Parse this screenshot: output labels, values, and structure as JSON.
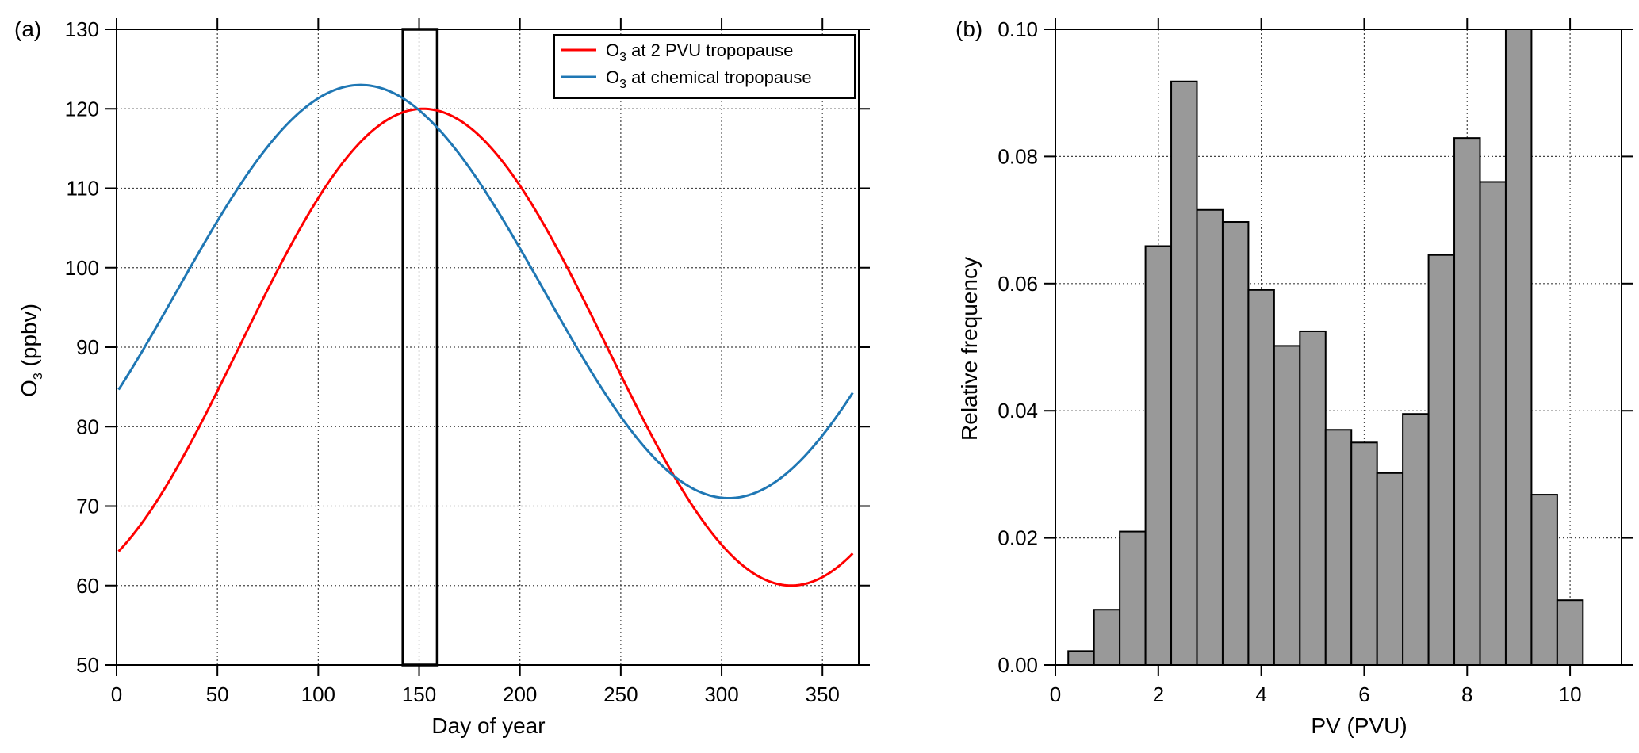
{
  "chart_data": [
    {
      "panel_label": "(a)",
      "type": "line",
      "xlabel": "Day of year",
      "ylabel_main": "O",
      "ylabel_sub": "3",
      "ylabel_tail": " (ppbv)",
      "xlim": [
        0,
        368
      ],
      "ylim": [
        50,
        130
      ],
      "xticks": [
        0,
        50,
        100,
        150,
        200,
        250,
        300,
        350
      ],
      "yticks": [
        50,
        60,
        70,
        80,
        90,
        100,
        110,
        120,
        130
      ],
      "grid": true,
      "highlight_box": {
        "x0": 142,
        "x1": 159,
        "y0": 50,
        "y1": 130
      },
      "legend_position": "top-right",
      "series": [
        {
          "label_main": "O",
          "label_sub": "3",
          "label_tail": " at 2 PVU tropopause",
          "color": "#ff0000",
          "mean": 90,
          "amplitude": 30,
          "peak_day": 152,
          "period": 365,
          "x_range": [
            1,
            365
          ]
        },
        {
          "label_main": "O",
          "label_sub": "3",
          "label_tail": " at chemical tropopause",
          "color": "#1f77b4",
          "mean": 97,
          "amplitude": 26,
          "peak_day": 121,
          "period": 365,
          "x_range": [
            1,
            365
          ]
        }
      ]
    },
    {
      "panel_label": "(b)",
      "type": "bar",
      "xlabel": "PV (PVU)",
      "ylabel": "Relative frequency",
      "xlim": [
        0,
        11
      ],
      "ylim": [
        0,
        0.1
      ],
      "xticks": [
        0,
        2,
        4,
        6,
        8,
        10
      ],
      "yticks": [
        "0.00",
        "0.02",
        "0.04",
        "0.06",
        "0.08",
        "0.10"
      ],
      "grid": true,
      "bar_color": "#999999",
      "bin_width": 0.5,
      "bin_starts": [
        0.25,
        0.75,
        1.25,
        1.75,
        2.25,
        2.75,
        3.25,
        3.75,
        4.25,
        4.75,
        5.25,
        5.75,
        6.25,
        6.75,
        7.25,
        7.75,
        8.25,
        8.75,
        9.25,
        9.75
      ],
      "values": [
        0.0022,
        0.0087,
        0.021,
        0.0659,
        0.0918,
        0.0716,
        0.0697,
        0.059,
        0.0502,
        0.0525,
        0.037,
        0.035,
        0.0302,
        0.0395,
        0.0645,
        0.0829,
        0.076,
        0.1,
        0.0268,
        0.0102
      ]
    }
  ]
}
